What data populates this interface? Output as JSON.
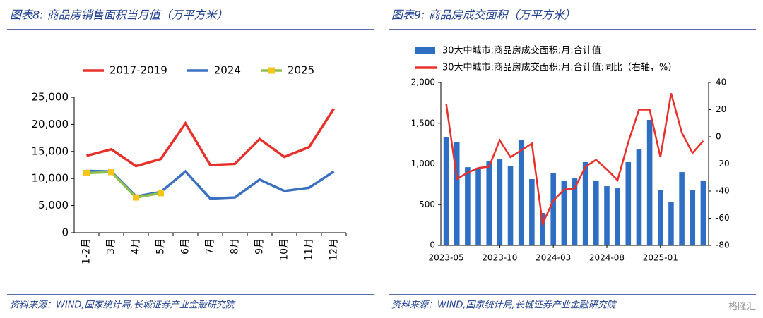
{
  "chart_data": [
    {
      "type": "line",
      "title": "图表8: 商品房销售面积当月值（万平方米）",
      "categories": [
        "1-2月",
        "3月",
        "4月",
        "5月",
        "6月",
        "7月",
        "8月",
        "9月",
        "10月",
        "11月",
        "12月"
      ],
      "series": [
        {
          "name": "2017-2019",
          "color": "#e8302a",
          "values": [
            14200,
            15400,
            12300,
            13600,
            20200,
            12500,
            12700,
            17300,
            14000,
            15800,
            22900
          ]
        },
        {
          "name": "2024",
          "color": "#3a70c0",
          "values": [
            11400,
            11300,
            6700,
            7500,
            11300,
            6300,
            6500,
            9800,
            7700,
            8300,
            11300
          ]
        },
        {
          "name": "2025",
          "color": "#8fbf4f",
          "marker_color": "#f5c518",
          "values": [
            11000,
            11200,
            6500,
            7300,
            null,
            null,
            null,
            null,
            null,
            null,
            null
          ]
        }
      ],
      "ylim": [
        0,
        25000
      ],
      "yticks": [
        0,
        {
          "value": 5000,
          "label": "5,000"
        },
        {
          "value": 10000,
          "label": "10,000"
        },
        {
          "value": 15000,
          "label": "15,000"
        },
        {
          "value": 20000,
          "label": "20,000"
        },
        {
          "value": 25000,
          "label": "25,000"
        }
      ],
      "legend": "top",
      "source": "资料来源：WIND,国家统计局,长城证券产业金融研究院"
    },
    {
      "type": "bar",
      "title": "图表9: 商品房成交面积（万平方米）",
      "x": [
        "2023-05",
        "2023-06",
        "2023-07",
        "2023-08",
        "2023-09",
        "2023-10",
        "2023-11",
        "2023-12",
        "2024-01",
        "2024-02",
        "2024-03",
        "2024-04",
        "2024-05",
        "2024-06",
        "2024-07",
        "2024-08",
        "2024-09",
        "2024-10",
        "2024-11",
        "2024-12",
        "2025-01",
        "2025-02",
        "2025-03",
        "2025-04",
        "2025-05"
      ],
      "series": [
        {
          "name": "30大中城市:商品房成交面积:月:合计值",
          "color": "#2e6fc4",
          "values": [
            1325,
            1264,
            960,
            952,
            1030,
            1056,
            978,
            1290,
            814,
            398,
            892,
            788,
            822,
            1022,
            797,
            727,
            701,
            1022,
            1177,
            1541,
            684,
            528,
            900,
            684,
            797
          ]
        },
        {
          "name": "30大中城市:商品房成交面积:月:合计值:同比（右轴，%）",
          "color": "#e8302a",
          "type": "line",
          "axis": "y2",
          "values": [
            24.4,
            -31,
            -26.5,
            -23,
            -22,
            -2.6,
            -15,
            -10,
            -5,
            -64,
            -47,
            -39,
            -38,
            -22,
            -17,
            -24,
            -32,
            -4,
            20,
            20,
            -15,
            32,
            3,
            -12,
            -3
          ]
        }
      ],
      "ylim": [
        0,
        2000
      ],
      "yticks": [
        0,
        500,
        {
          "value": 1000,
          "label": "1,000"
        },
        {
          "value": 1500,
          "label": "1,500"
        },
        {
          "value": 2000,
          "label": "2,000"
        }
      ],
      "y2lim": [
        -80,
        40
      ],
      "y2ticks": [
        -80,
        -60,
        -40,
        -20,
        0,
        20,
        40
      ],
      "xtick_every": 5,
      "legend": "top",
      "source": "资料来源：WIND,国家统计局,长城证券产业金融研究院"
    }
  ],
  "watermark": "格隆汇"
}
